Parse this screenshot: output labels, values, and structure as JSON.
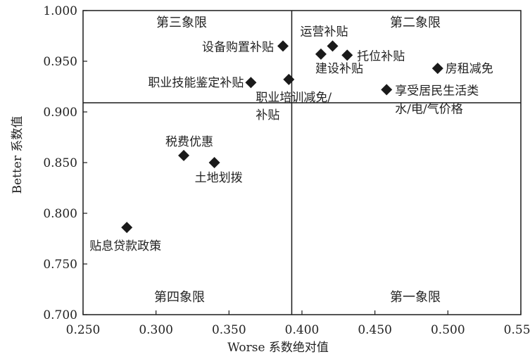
{
  "chart_data": {
    "type": "scatter",
    "title": "",
    "xlabel": "Worse 系数绝对值",
    "ylabel": "Better 系数值",
    "xlim": [
      0.25,
      0.55
    ],
    "ylim": [
      0.7,
      1.0
    ],
    "x_ticks": [
      "0.250",
      "0.300",
      "0.350",
      "0.400",
      "0.450",
      "0.500",
      "0.550"
    ],
    "y_ticks": [
      "0.700",
      "0.750",
      "0.800",
      "0.850",
      "0.900",
      "0.950",
      "1.000"
    ],
    "divider_x": 0.393,
    "divider_y": 0.909,
    "grid": false,
    "marker": "diamond",
    "marker_color": "#1a1a1a",
    "quadrant_labels": {
      "q1": "第一象限",
      "q2": "第二象限",
      "q3": "第三象限",
      "q4": "第四象限"
    },
    "points": [
      {
        "label": "设备购置补贴",
        "x": 0.387,
        "y": 0.965
      },
      {
        "label": "运营补贴",
        "x": 0.421,
        "y": 0.965
      },
      {
        "label": "托位补贴",
        "x": 0.431,
        "y": 0.956
      },
      {
        "label": "建设补贴",
        "x": 0.413,
        "y": 0.957
      },
      {
        "label": "房租减免",
        "x": 0.493,
        "y": 0.943
      },
      {
        "label": "职业技能鉴定补贴",
        "x": 0.365,
        "y": 0.929
      },
      {
        "label": "职业培训减免/补贴",
        "x": 0.391,
        "y": 0.932
      },
      {
        "label": "享受居民生活类水/电/气价格",
        "x": 0.458,
        "y": 0.922
      },
      {
        "label": "税费优惠",
        "x": 0.319,
        "y": 0.857
      },
      {
        "label": "土地划拨",
        "x": 0.34,
        "y": 0.85
      },
      {
        "label": "贴息贷款政策",
        "x": 0.28,
        "y": 0.786
      }
    ]
  }
}
